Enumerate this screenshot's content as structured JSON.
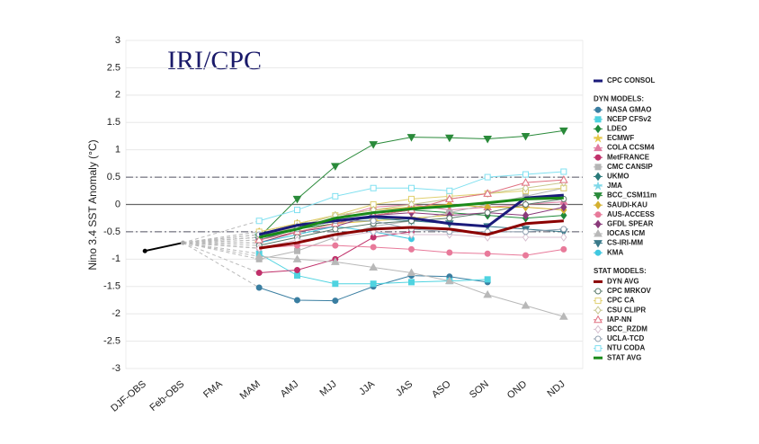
{
  "chart_data": {
    "type": "line",
    "annotation": "IRI/CPC",
    "ylabel": "Nino 3.4 SST Anomaly (°C)",
    "categories": [
      "DJF-OBS",
      "Feb-OBS",
      "FMA",
      "MAM",
      "AMJ",
      "MJJ",
      "JJA",
      "JAS",
      "ASO",
      "SON",
      "OND",
      "NDJ"
    ],
    "ylim": [
      -3,
      3
    ],
    "yticks": [
      3,
      2.5,
      2,
      1.5,
      1,
      0.5,
      0,
      -0.5,
      -1,
      -1.5,
      -2,
      -2.5,
      -3
    ],
    "reference_lines": [
      0.5,
      -0.5
    ],
    "observed": [
      -0.85,
      -0.7,
      null,
      null,
      null,
      null,
      null,
      null,
      null,
      null,
      null,
      null
    ],
    "legend_headers": [
      "DYN MODELS:",
      "STAT MODELS:"
    ],
    "series": [
      {
        "name": "CPC CONSOL",
        "color": "#1a1a7a",
        "width": 3,
        "values": [
          null,
          null,
          null,
          -0.55,
          -0.38,
          -0.3,
          -0.22,
          -0.25,
          -0.35,
          -0.4,
          0.12,
          0.17
        ]
      },
      {
        "name": "NASA GMAO",
        "color": "#3a7ea1",
        "marker": "circle",
        "values": [
          null,
          null,
          null,
          -1.52,
          -1.75,
          -1.76,
          -1.5,
          -1.3,
          -1.32,
          -1.42,
          null,
          null
        ]
      },
      {
        "name": "NCEP CFSv2",
        "color": "#4fd3e0",
        "marker": "square",
        "values": [
          null,
          null,
          null,
          -0.9,
          -1.3,
          -1.45,
          -1.45,
          -1.42,
          -1.4,
          -1.37,
          null,
          null
        ]
      },
      {
        "name": "LDEO",
        "color": "#1f8a3a",
        "marker": "diamond",
        "values": [
          null,
          null,
          null,
          -0.6,
          -0.45,
          -0.35,
          -0.2,
          -0.1,
          -0.15,
          -0.2,
          -0.25,
          -0.2
        ]
      },
      {
        "name": "ECMWF",
        "color": "#e6c84a",
        "marker": "star",
        "values": [
          null,
          null,
          null,
          -0.7,
          -0.5,
          -0.35,
          -0.3,
          -0.25,
          -0.2,
          null,
          null,
          null
        ]
      },
      {
        "name": "COLA CCSM4",
        "color": "#e07aa0",
        "marker": "triangle",
        "values": [
          null,
          null,
          null,
          -0.6,
          -0.4,
          -0.25,
          -0.05,
          0,
          -0.1,
          -0.05,
          0,
          0.05
        ]
      },
      {
        "name": "MetFRANCE",
        "color": "#c0306a",
        "marker": "circle",
        "values": [
          null,
          null,
          null,
          -1.25,
          -1.2,
          -1.0,
          -0.6,
          -0.5,
          null,
          null,
          null,
          null
        ]
      },
      {
        "name": "CMC CANSIP",
        "color": "#b5b5b5",
        "marker": "square",
        "values": [
          null,
          null,
          null,
          -1.0,
          -0.85,
          -0.6,
          -0.4,
          -0.3,
          -0.15,
          0,
          0.15,
          0.3
        ]
      },
      {
        "name": "UKMO",
        "color": "#2a7a7a",
        "marker": "diamond",
        "values": [
          null,
          null,
          null,
          -0.6,
          -0.35,
          -0.3,
          -0.3,
          null,
          null,
          null,
          null,
          null
        ]
      },
      {
        "name": "JMA",
        "color": "#7fd8e8",
        "marker": "star",
        "values": [
          null,
          null,
          null,
          -0.55,
          -0.4,
          -0.3,
          -0.25,
          -0.3,
          null,
          null,
          null,
          null
        ]
      },
      {
        "name": "BCC_CSM11m",
        "color": "#2a8a3a",
        "marker": "triangle-down",
        "values": [
          null,
          null,
          null,
          -0.6,
          0.1,
          0.7,
          1.1,
          1.23,
          1.22,
          1.2,
          1.25,
          1.35
        ]
      },
      {
        "name": "SAUDI-KAU",
        "color": "#d4b030",
        "marker": "diamond",
        "values": [
          null,
          null,
          null,
          -0.5,
          -0.35,
          -0.2,
          -0.1,
          -0.05,
          0,
          -0.05,
          -0.05,
          -0.1
        ]
      },
      {
        "name": "AUS-ACCESS",
        "color": "#e87a9a",
        "marker": "circle",
        "values": [
          null,
          null,
          null,
          -0.8,
          -0.75,
          -0.75,
          -0.78,
          -0.82,
          -0.88,
          -0.9,
          -0.93,
          -0.82
        ]
      },
      {
        "name": "GFDL SPEAR",
        "color": "#8a3a7a",
        "marker": "diamond",
        "values": [
          null,
          null,
          null,
          -0.7,
          -0.5,
          -0.4,
          -0.2,
          -0.15,
          -0.2,
          -0.15,
          -0.2,
          -0.05
        ]
      },
      {
        "name": "IOCAS ICM",
        "color": "#b8b8b8",
        "marker": "triangle",
        "values": [
          null,
          null,
          null,
          -0.95,
          -1.0,
          -1.05,
          -1.15,
          -1.25,
          -1.4,
          -1.65,
          -1.85,
          -2.05
        ]
      },
      {
        "name": "CS-IRI-MM",
        "color": "#3a7a8a",
        "marker": "triangle-down",
        "values": [
          null,
          null,
          null,
          -0.65,
          -0.45,
          -0.3,
          -0.25,
          -0.3,
          -0.35,
          -0.4,
          -0.45,
          -0.5
        ]
      },
      {
        "name": "KMA",
        "color": "#40c8e0",
        "marker": "circle",
        "values": [
          null,
          null,
          null,
          -0.7,
          -0.55,
          -0.4,
          -0.5,
          -0.63,
          null,
          null,
          null,
          null
        ]
      },
      {
        "name": "DYN AVG",
        "color": "#8b0000",
        "width": 3,
        "values": [
          null,
          null,
          null,
          -0.8,
          -0.7,
          -0.55,
          -0.45,
          -0.42,
          -0.45,
          -0.55,
          -0.35,
          -0.3
        ]
      },
      {
        "name": "CPC MRKOV",
        "color": "#5a7a6a",
        "marker": "open-circle",
        "values": [
          null,
          null,
          null,
          -0.75,
          -0.6,
          -0.45,
          -0.35,
          -0.3,
          -0.25,
          -0.15,
          0,
          0.1
        ]
      },
      {
        "name": "CPC CA",
        "color": "#e0d070",
        "marker": "open-square",
        "values": [
          null,
          null,
          null,
          -0.5,
          -0.35,
          -0.2,
          0,
          0.1,
          0.15,
          0.2,
          0.25,
          0.3
        ]
      },
      {
        "name": "CSU CLIPR",
        "color": "#c8c890",
        "marker": "open-diamond",
        "values": [
          null,
          null,
          null,
          -0.6,
          -0.4,
          -0.2,
          -0.1,
          0,
          0.1,
          0.2,
          0.3,
          0.4
        ]
      },
      {
        "name": "IAP-NN",
        "color": "#e07080",
        "marker": "open-triangle",
        "values": [
          null,
          null,
          null,
          -0.65,
          -0.5,
          -0.35,
          -0.2,
          -0.1,
          0.1,
          0.2,
          0.4,
          0.45
        ]
      },
      {
        "name": "BCC_RZDM",
        "color": "#d8c0d0",
        "marker": "open-diamond",
        "values": [
          null,
          null,
          null,
          -0.8,
          -0.65,
          -0.6,
          -0.5,
          -0.55,
          -0.55,
          -0.6,
          -0.6,
          -0.6
        ]
      },
      {
        "name": "UCLA-TCD",
        "color": "#90a0b0",
        "marker": "open-circle",
        "values": [
          null,
          null,
          null,
          -0.55,
          -0.45,
          -0.3,
          -0.3,
          -0.45,
          -0.5,
          -0.5,
          -0.5,
          -0.45
        ]
      },
      {
        "name": "NTU CODA",
        "color": "#80e0f0",
        "marker": "open-square",
        "values": [
          null,
          null,
          null,
          -0.3,
          -0.1,
          0.15,
          0.3,
          0.3,
          0.25,
          0.5,
          0.55,
          0.6
        ]
      },
      {
        "name": "STAT AVG",
        "color": "#1a8a1a",
        "width": 3,
        "values": [
          null,
          null,
          null,
          -0.6,
          -0.45,
          -0.25,
          -0.15,
          -0.08,
          -0.03,
          0.03,
          0.1,
          0.12
        ]
      }
    ]
  }
}
